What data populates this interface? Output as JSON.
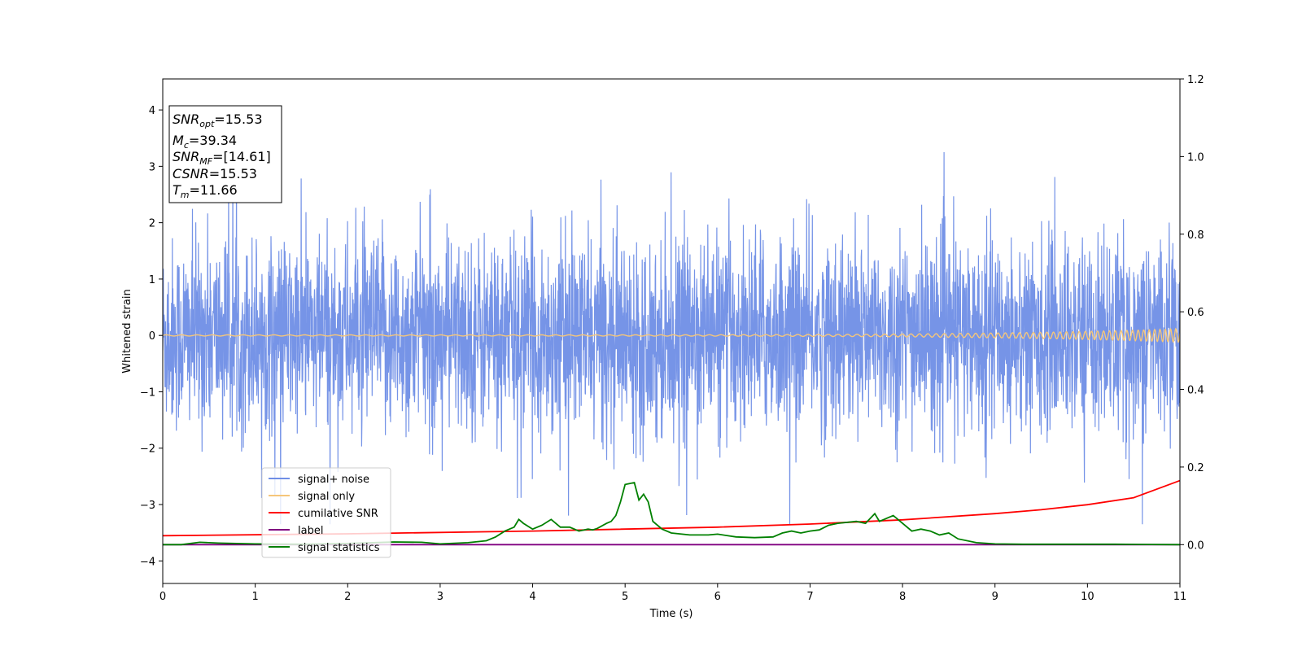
{
  "chart_data": {
    "type": "line",
    "xlabel": "Time (s)",
    "ylabel": "Whitened strain",
    "xlim": [
      0,
      11
    ],
    "ylim": [
      -4.4,
      4.55
    ],
    "y2lim": [
      -0.1,
      1.2
    ],
    "x_ticks": [
      "0",
      "1",
      "2",
      "3",
      "4",
      "5",
      "6",
      "7",
      "8",
      "9",
      "10",
      "11"
    ],
    "y_ticks": [
      "−4",
      "−3",
      "−2",
      "−1",
      "0",
      "1",
      "2",
      "3",
      "4"
    ],
    "y2_ticks": [
      "0.0",
      "0.2",
      "0.4",
      "0.6",
      "0.8",
      "1.0",
      "1.2"
    ],
    "grid": false,
    "legend_position": "lower-left",
    "annotation": {
      "line1": "SNR_opt=15.53",
      "line2": "M_c=39.34",
      "line3": "SNR_MF=[14.61]",
      "line4": "CSNR=15.53",
      "line5": "T_m=11.66"
    },
    "series": [
      {
        "name": "signal+ noise",
        "color": "#6f8ee6",
        "axis": "left",
        "envelope": {
          "typical_max": 1.5,
          "typical_min": -1.5,
          "peak_max": 3.6,
          "peak_min": -3.35
        }
      },
      {
        "name": "signal only",
        "color": "#f5c67a",
        "axis": "left",
        "amplitude_start": 0.01,
        "amplitude_end": 0.12
      },
      {
        "name": "cumilative SNR",
        "color": "#ff0000",
        "axis": "right",
        "x": [
          0,
          2,
          4,
          6,
          7,
          8,
          9,
          9.5,
          10,
          10.5,
          11
        ],
        "y": [
          0.023,
          0.028,
          0.035,
          0.045,
          0.053,
          0.064,
          0.08,
          0.09,
          0.103,
          0.121,
          0.165
        ]
      },
      {
        "name": "label",
        "color": "#800080",
        "axis": "right",
        "x": [
          0,
          11
        ],
        "y": [
          0,
          0
        ]
      },
      {
        "name": "signal statistics",
        "color": "#008000",
        "axis": "right",
        "x": [
          0,
          0.2,
          0.4,
          0.6,
          1.0,
          1.5,
          2.0,
          2.5,
          2.8,
          3.0,
          3.3,
          3.5,
          3.6,
          3.7,
          3.8,
          3.85,
          3.9,
          4.0,
          4.1,
          4.2,
          4.3,
          4.4,
          4.5,
          4.6,
          4.65,
          4.7,
          4.8,
          4.85,
          4.9,
          4.95,
          5.0,
          5.1,
          5.15,
          5.2,
          5.25,
          5.3,
          5.4,
          5.5,
          5.7,
          5.9,
          6.0,
          6.2,
          6.4,
          6.6,
          6.7,
          6.8,
          6.9,
          7.0,
          7.1,
          7.2,
          7.3,
          7.5,
          7.6,
          7.7,
          7.75,
          7.8,
          7.9,
          8.0,
          8.1,
          8.2,
          8.3,
          8.4,
          8.5,
          8.6,
          8.8,
          9.0,
          9.3,
          9.7,
          10.3,
          11.0
        ],
        "y": [
          0.0,
          0.0,
          0.006,
          0.004,
          0.002,
          0.001,
          0.003,
          0.007,
          0.006,
          0.002,
          0.005,
          0.01,
          0.02,
          0.035,
          0.045,
          0.065,
          0.055,
          0.04,
          0.05,
          0.065,
          0.045,
          0.045,
          0.035,
          0.04,
          0.038,
          0.042,
          0.055,
          0.06,
          0.075,
          0.11,
          0.155,
          0.16,
          0.115,
          0.13,
          0.11,
          0.06,
          0.04,
          0.03,
          0.025,
          0.025,
          0.027,
          0.02,
          0.018,
          0.02,
          0.03,
          0.035,
          0.03,
          0.035,
          0.038,
          0.05,
          0.055,
          0.06,
          0.055,
          0.08,
          0.06,
          0.065,
          0.075,
          0.055,
          0.035,
          0.04,
          0.035,
          0.025,
          0.03,
          0.015,
          0.005,
          0.002,
          0.001,
          0.001,
          0.001,
          0.0
        ]
      }
    ]
  }
}
